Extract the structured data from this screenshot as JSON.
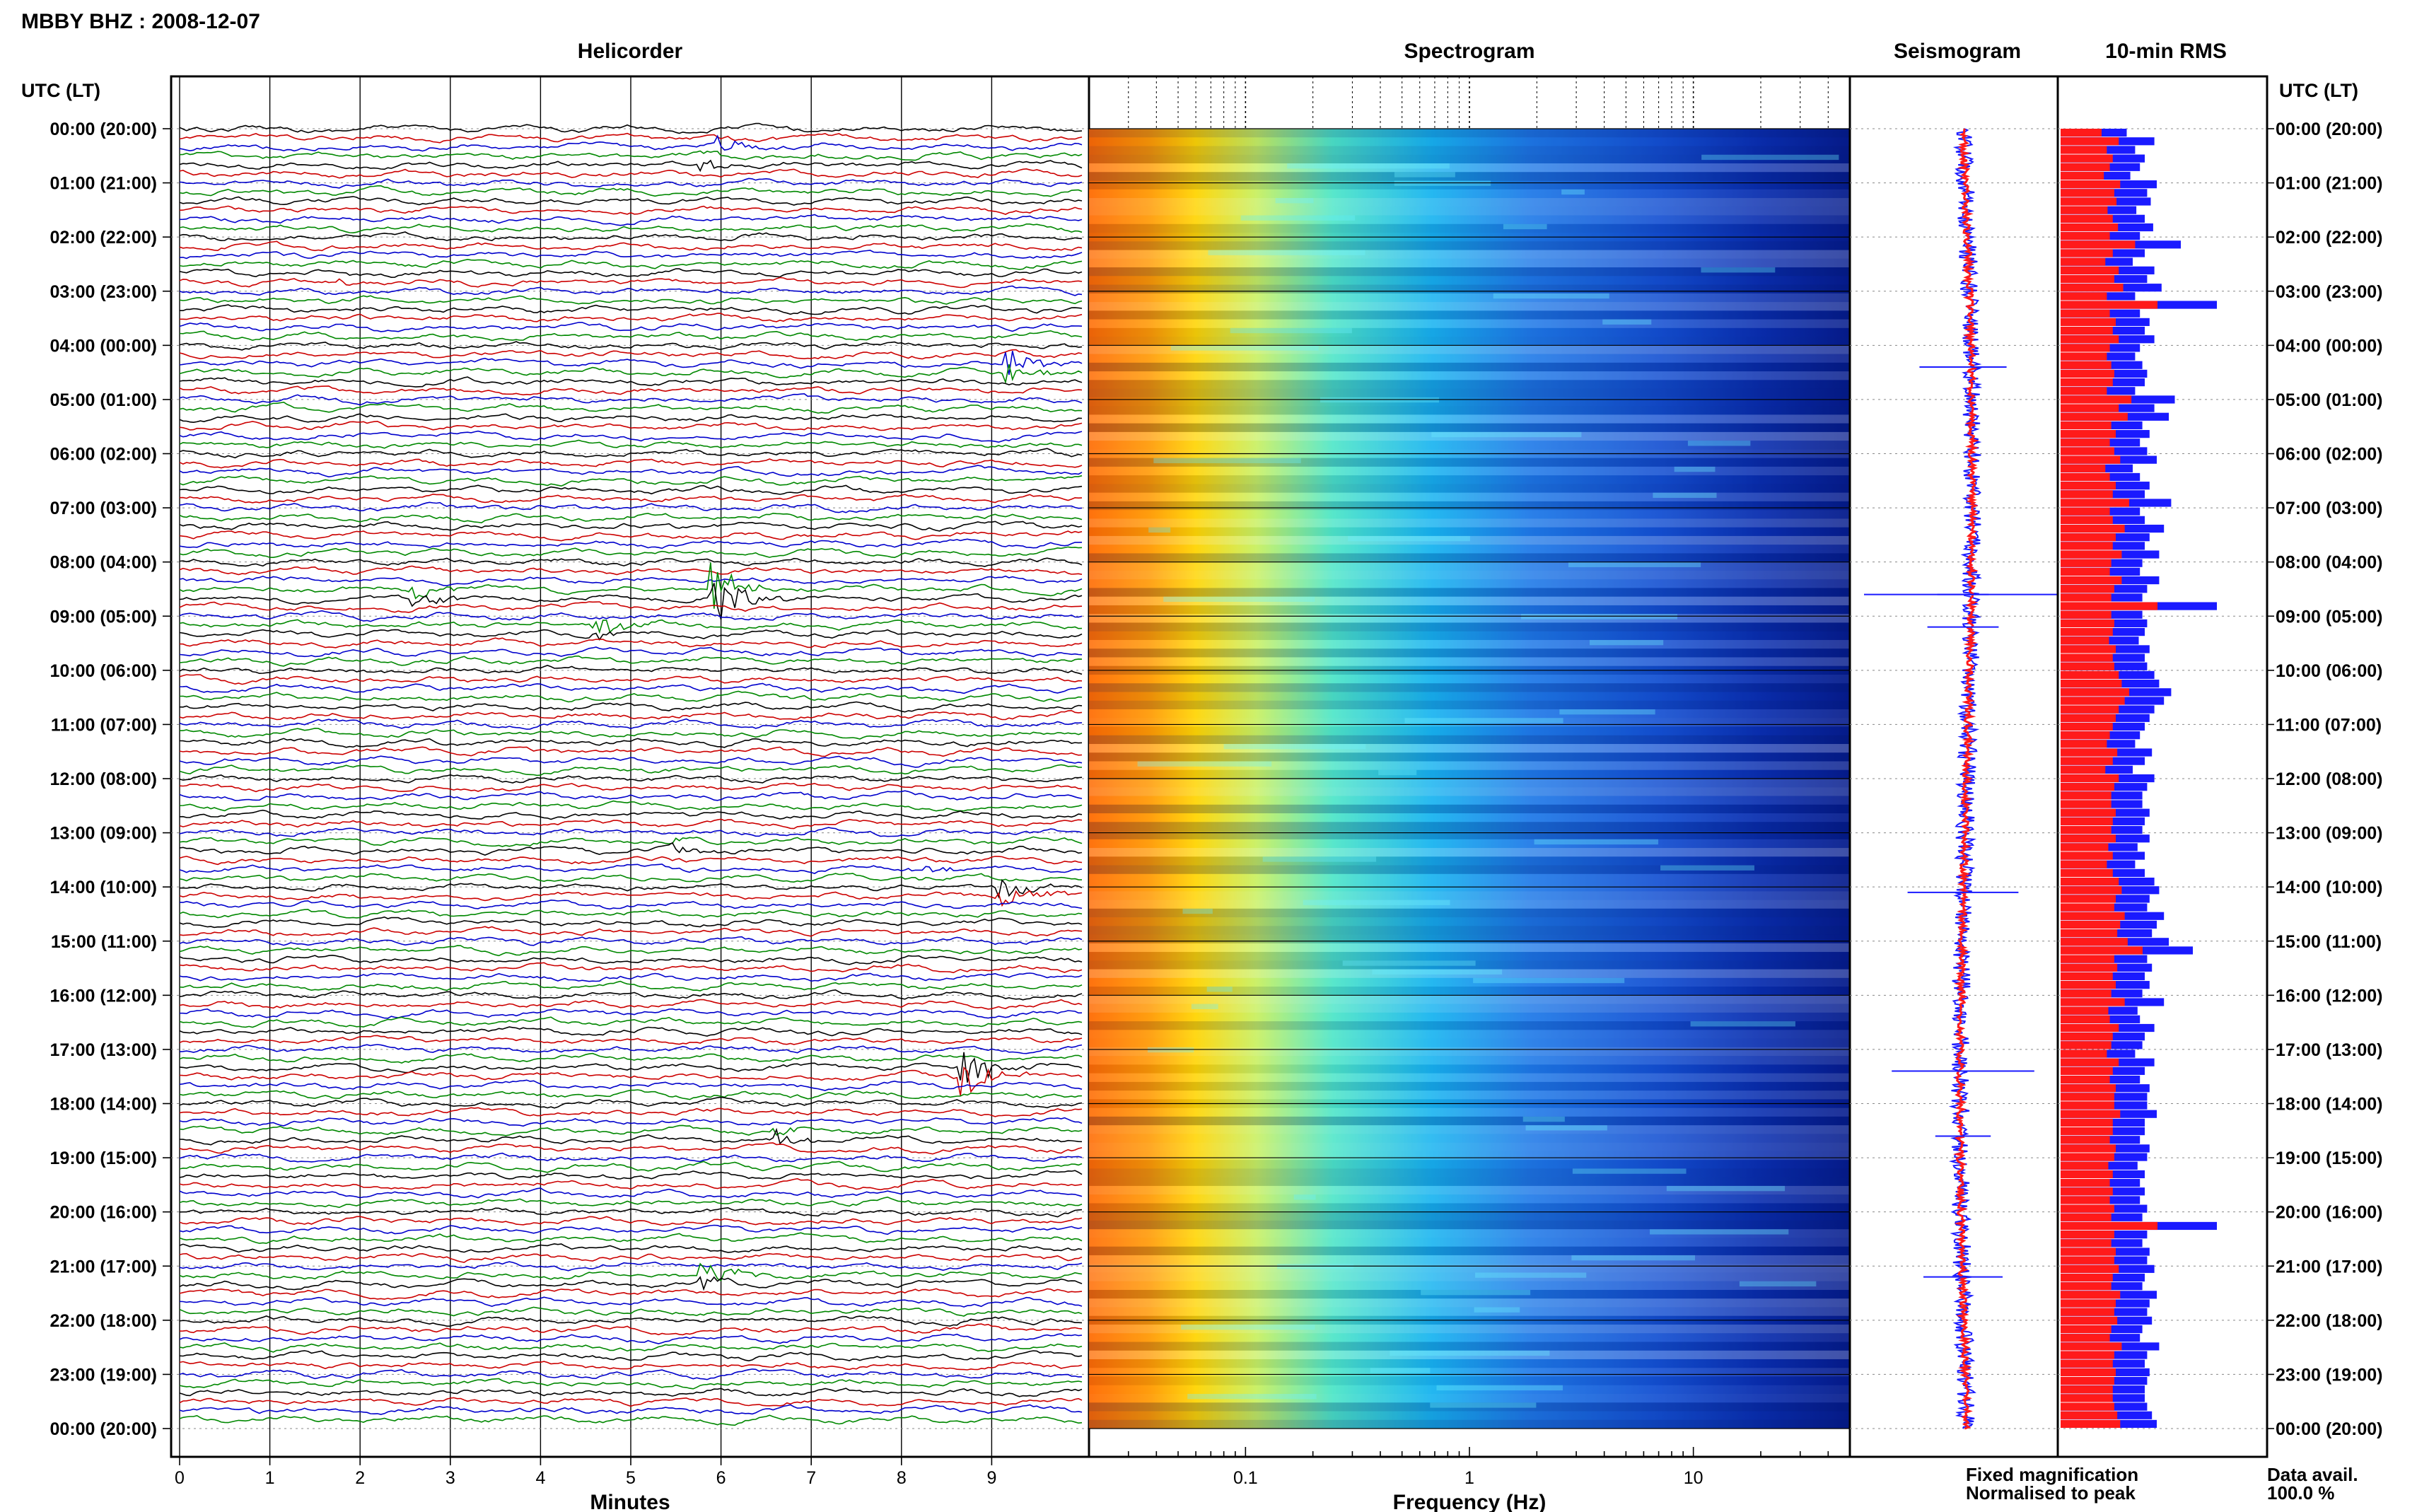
{
  "title": "MBBY BHZ : 2008-12-07",
  "panels": {
    "helicorder": "Helicorder",
    "spectrogram": "Spectrogram",
    "seismogram": "Seismogram",
    "rms": "10-min RMS"
  },
  "time_axis_label": "UTC (LT)",
  "time_labels": [
    "00:00 (20:00)",
    "01:00 (21:00)",
    "02:00 (22:00)",
    "03:00 (23:00)",
    "04:00 (00:00)",
    "05:00 (01:00)",
    "06:00 (02:00)",
    "07:00 (03:00)",
    "08:00 (04:00)",
    "09:00 (05:00)",
    "10:00 (06:00)",
    "11:00 (07:00)",
    "12:00 (08:00)",
    "13:00 (09:00)",
    "14:00 (10:00)",
    "15:00 (11:00)",
    "16:00 (12:00)",
    "17:00 (13:00)",
    "18:00 (14:00)",
    "19:00 (15:00)",
    "20:00 (16:00)",
    "21:00 (17:00)",
    "22:00 (18:00)",
    "23:00 (19:00)",
    "00:00 (20:00)"
  ],
  "minutes_ticks": [
    "0",
    "1",
    "2",
    "3",
    "4",
    "5",
    "6",
    "7",
    "8",
    "9"
  ],
  "xlabel_minutes": "Minutes",
  "freq_ticks": [
    "0.1",
    "1",
    "10"
  ],
  "xlabel_frequency": "Frequency (Hz)",
  "legend": {
    "fixed": "Fixed magnification",
    "normalised": "Normalised to peak",
    "fixed_color": "#1a1aff",
    "normalised_color": "#ff1a1a"
  },
  "data_avail_label": "Data avail.",
  "data_avail_value": "100.0 %",
  "chart_data": {
    "type": "helicorder",
    "station": "MBBY",
    "channel": "BHZ",
    "date": "2008-12-07",
    "trace_minutes_per_line": 10,
    "trace_colors": [
      "#000000",
      "#cc0000",
      "#0000cc",
      "#008800"
    ],
    "events": [
      {
        "hour": 0.3,
        "minute": 6.0,
        "amp": 1.0
      },
      {
        "hour": 0.6,
        "minute": 5.8,
        "amp": 1.2
      },
      {
        "hour": 2.8,
        "minute": 1.8,
        "amp": 0.8
      },
      {
        "hour": 4.4,
        "minute": 9.2,
        "amp": 2.2
      },
      {
        "hour": 8.6,
        "minute": 2.6,
        "amp": 1.3
      },
      {
        "hour": 8.6,
        "minute": 5.9,
        "amp": 5.5
      },
      {
        "hour": 9.2,
        "minute": 4.6,
        "amp": 1.8
      },
      {
        "hour": 13.3,
        "minute": 5.5,
        "amp": 0.8
      },
      {
        "hour": 13.7,
        "minute": 8.1,
        "amp": 0.8
      },
      {
        "hour": 14.1,
        "minute": 9.1,
        "amp": 2.8
      },
      {
        "hour": 17.4,
        "minute": 8.7,
        "amp": 3.6
      },
      {
        "hour": 18.6,
        "minute": 6.6,
        "amp": 1.4
      },
      {
        "hour": 21.2,
        "minute": 5.8,
        "amp": 2.0
      }
    ],
    "rms_fixed": [
      0.55,
      0.78,
      0.62,
      0.7,
      0.66,
      0.58,
      0.8,
      0.72,
      0.75,
      0.63,
      0.7,
      0.77,
      0.66,
      1.0,
      0.7,
      0.6,
      0.78,
      0.72,
      0.84,
      0.62,
      1.3,
      0.66,
      0.74,
      0.7,
      0.78,
      0.66,
      0.62,
      0.68,
      0.72,
      0.7,
      0.62,
      0.95,
      0.78,
      0.9,
      0.68,
      0.74,
      0.66,
      0.72,
      0.8,
      0.6,
      0.66,
      0.74,
      0.7,
      0.92,
      0.66,
      0.7,
      0.86,
      0.74,
      0.7,
      0.82,
      0.68,
      0.66,
      0.82,
      0.72,
      0.68,
      1.3,
      0.68,
      0.72,
      0.7,
      0.65,
      0.74,
      0.7,
      0.72,
      0.78,
      0.82,
      0.92,
      0.86,
      0.78,
      0.74,
      0.7,
      0.66,
      0.62,
      0.76,
      0.7,
      0.6,
      0.78,
      0.72,
      0.68,
      0.68,
      0.74,
      0.7,
      0.68,
      0.74,
      0.64,
      0.7,
      0.62,
      0.7,
      0.78,
      0.82,
      0.74,
      0.72,
      0.86,
      0.8,
      0.76,
      0.9,
      1.1,
      0.72,
      0.76,
      0.7,
      0.74,
      0.68,
      0.86,
      0.64,
      0.66,
      0.78,
      0.7,
      0.68,
      0.62,
      0.78,
      0.7,
      0.66,
      0.74,
      0.72,
      0.72,
      0.8,
      0.7,
      0.7,
      0.66,
      0.74,
      0.72,
      0.64,
      0.7,
      0.66,
      0.7,
      0.66,
      0.72,
      0.68,
      1.3,
      0.72,
      0.68,
      0.74,
      0.72,
      0.78,
      0.7,
      0.68,
      0.8,
      0.74,
      0.72,
      0.76,
      0.68,
      0.66,
      0.82,
      0.72,
      0.7,
      0.74,
      0.72,
      0.7,
      0.7,
      0.72,
      0.76,
      0.8
    ],
    "rms_normalised_ratio": 0.62
  }
}
